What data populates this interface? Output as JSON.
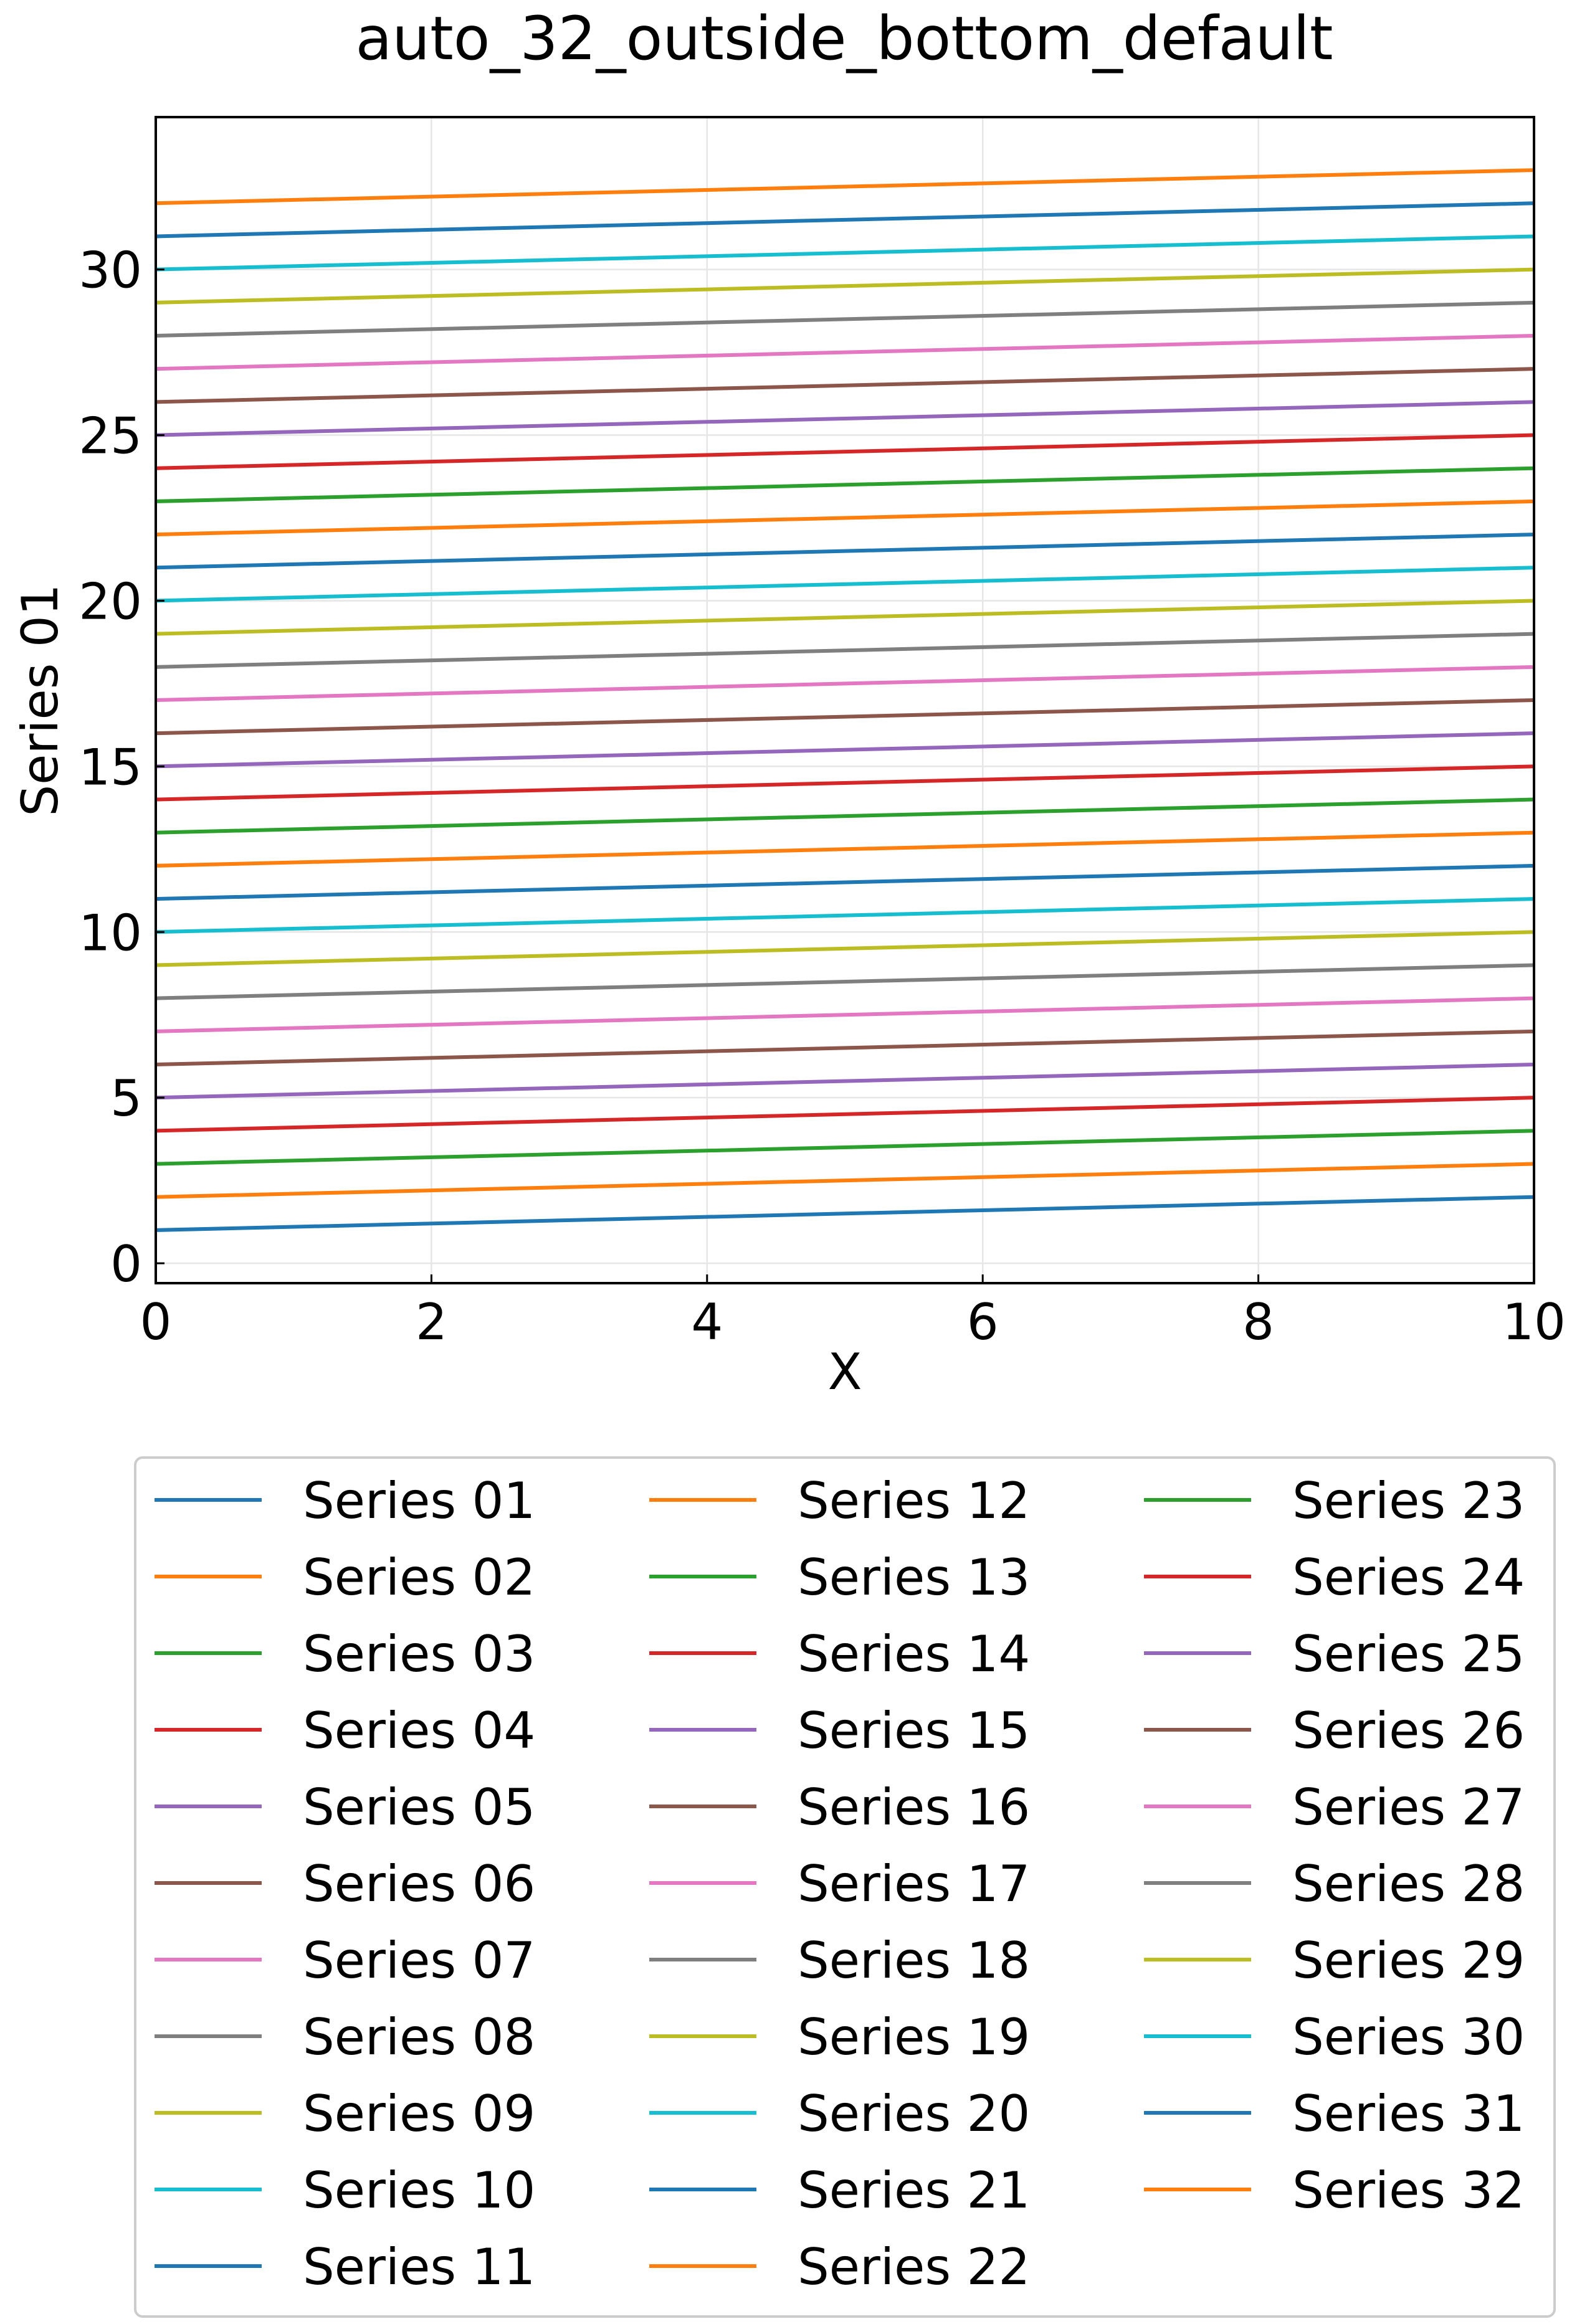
{
  "chart_data": {
    "type": "line",
    "title": "auto_32_outside_bottom_default",
    "xlabel": "X",
    "ylabel": "Series 01",
    "xlim": [
      0,
      10
    ],
    "ylim": [
      -0.6,
      34.6
    ],
    "xticks": [
      0,
      2,
      4,
      6,
      8,
      10
    ],
    "yticks": [
      0,
      5,
      10,
      15,
      20,
      25,
      30
    ],
    "grid": true,
    "legend_placement": "outside-bottom",
    "legend_columns": 3,
    "x": [
      0,
      10
    ],
    "series": [
      {
        "name": "Series 01",
        "color": "#1f77b4",
        "values": [
          1,
          2
        ]
      },
      {
        "name": "Series 02",
        "color": "#ff7f0e",
        "values": [
          2,
          3
        ]
      },
      {
        "name": "Series 03",
        "color": "#2ca02c",
        "values": [
          3,
          4
        ]
      },
      {
        "name": "Series 04",
        "color": "#d62728",
        "values": [
          4,
          5
        ]
      },
      {
        "name": "Series 05",
        "color": "#9467bd",
        "values": [
          5,
          6
        ]
      },
      {
        "name": "Series 06",
        "color": "#8c564b",
        "values": [
          6,
          7
        ]
      },
      {
        "name": "Series 07",
        "color": "#e377c2",
        "values": [
          7,
          8
        ]
      },
      {
        "name": "Series 08",
        "color": "#7f7f7f",
        "values": [
          8,
          9
        ]
      },
      {
        "name": "Series 09",
        "color": "#bcbd22",
        "values": [
          9,
          10
        ]
      },
      {
        "name": "Series 10",
        "color": "#17becf",
        "values": [
          10,
          11
        ]
      },
      {
        "name": "Series 11",
        "color": "#1f77b4",
        "values": [
          11,
          12
        ]
      },
      {
        "name": "Series 12",
        "color": "#ff7f0e",
        "values": [
          12,
          13
        ]
      },
      {
        "name": "Series 13",
        "color": "#2ca02c",
        "values": [
          13,
          14
        ]
      },
      {
        "name": "Series 14",
        "color": "#d62728",
        "values": [
          14,
          15
        ]
      },
      {
        "name": "Series 15",
        "color": "#9467bd",
        "values": [
          15,
          16
        ]
      },
      {
        "name": "Series 16",
        "color": "#8c564b",
        "values": [
          16,
          17
        ]
      },
      {
        "name": "Series 17",
        "color": "#e377c2",
        "values": [
          17,
          18
        ]
      },
      {
        "name": "Series 18",
        "color": "#7f7f7f",
        "values": [
          18,
          19
        ]
      },
      {
        "name": "Series 19",
        "color": "#bcbd22",
        "values": [
          19,
          20
        ]
      },
      {
        "name": "Series 20",
        "color": "#17becf",
        "values": [
          20,
          21
        ]
      },
      {
        "name": "Series 21",
        "color": "#1f77b4",
        "values": [
          21,
          22
        ]
      },
      {
        "name": "Series 22",
        "color": "#ff7f0e",
        "values": [
          22,
          23
        ]
      },
      {
        "name": "Series 23",
        "color": "#2ca02c",
        "values": [
          23,
          24
        ]
      },
      {
        "name": "Series 24",
        "color": "#d62728",
        "values": [
          24,
          25
        ]
      },
      {
        "name": "Series 25",
        "color": "#9467bd",
        "values": [
          25,
          26
        ]
      },
      {
        "name": "Series 26",
        "color": "#8c564b",
        "values": [
          26,
          27
        ]
      },
      {
        "name": "Series 27",
        "color": "#e377c2",
        "values": [
          27,
          28
        ]
      },
      {
        "name": "Series 28",
        "color": "#7f7f7f",
        "values": [
          28,
          29
        ]
      },
      {
        "name": "Series 29",
        "color": "#bcbd22",
        "values": [
          29,
          30
        ]
      },
      {
        "name": "Series 30",
        "color": "#17becf",
        "values": [
          30,
          31
        ]
      },
      {
        "name": "Series 31",
        "color": "#1f77b4",
        "values": [
          31,
          32
        ]
      },
      {
        "name": "Series 32",
        "color": "#ff7f0e",
        "values": [
          32,
          33
        ]
      }
    ]
  }
}
